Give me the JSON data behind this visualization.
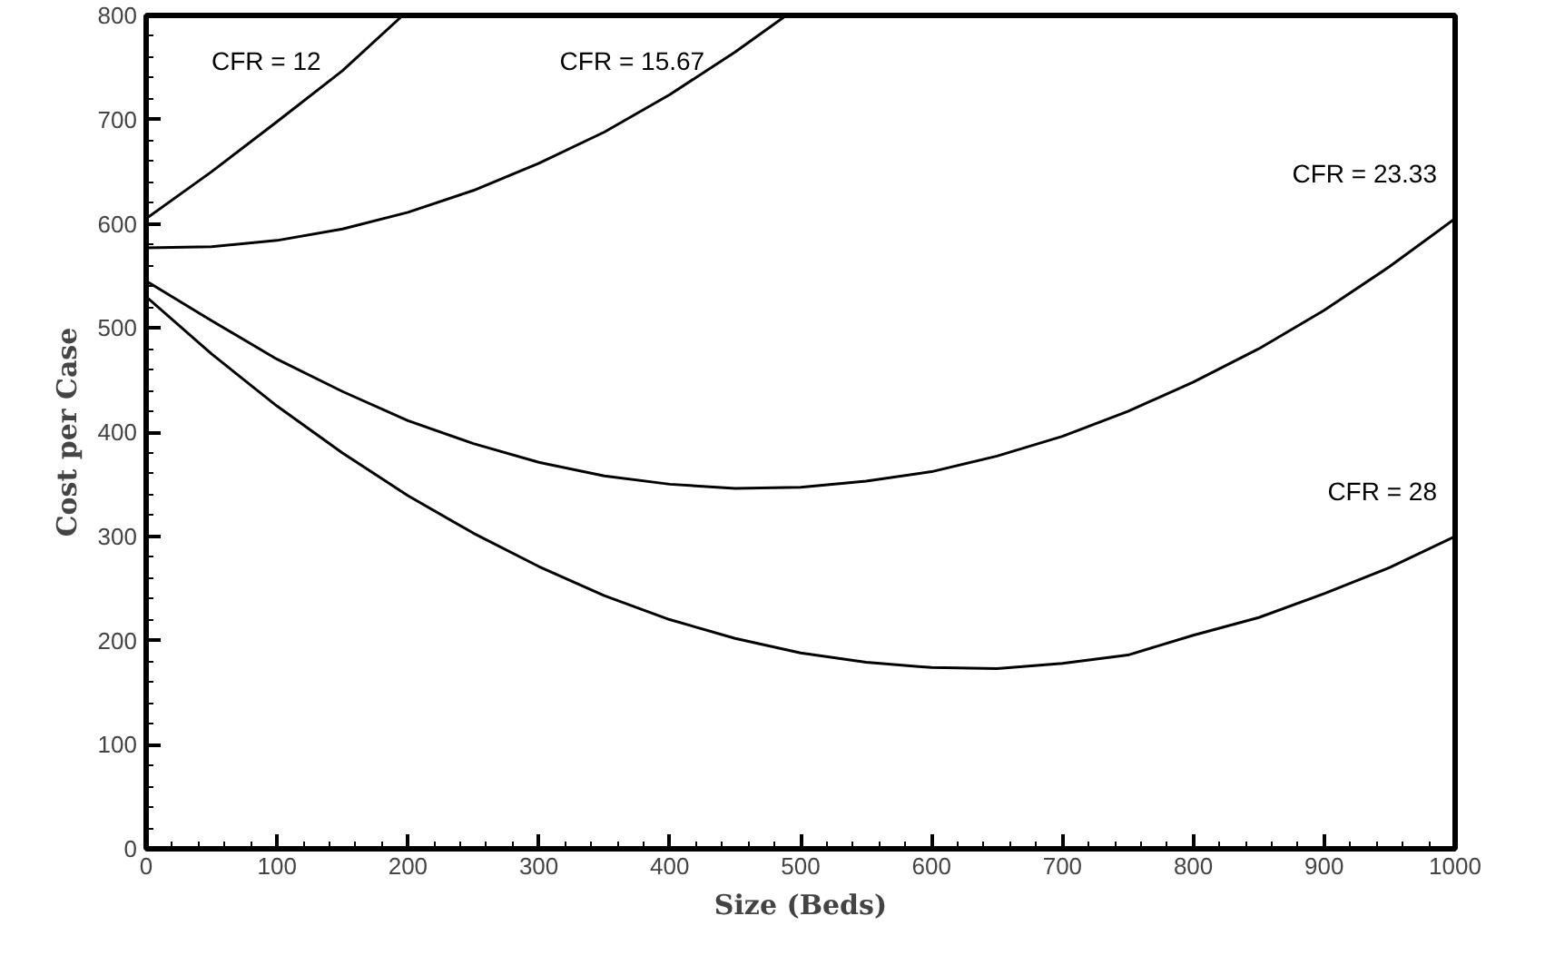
{
  "chart_data": {
    "type": "line",
    "xlabel": "Size (Beds)",
    "ylabel": "Cost per Case",
    "xlim": [
      0,
      1000
    ],
    "ylim": [
      0,
      800
    ],
    "xticks": [
      0,
      100,
      200,
      300,
      400,
      500,
      600,
      700,
      800,
      900,
      1000
    ],
    "yticks": [
      0,
      100,
      200,
      300,
      400,
      500,
      600,
      700,
      800
    ],
    "grid": false,
    "marker": "none",
    "line_style": "solid",
    "series": [
      {
        "name": "CFR = 12",
        "color": "#000000",
        "x": [
          0,
          50,
          100,
          150,
          196
        ],
        "values": [
          605,
          650,
          698,
          747,
          800
        ]
      },
      {
        "name": "CFR = 15.67",
        "color": "#000000",
        "x": [
          0,
          50,
          100,
          150,
          200,
          250,
          300,
          350,
          400,
          450,
          489
        ],
        "values": [
          577,
          578,
          584,
          595,
          611,
          632,
          658,
          688,
          724,
          765,
          800
        ]
      },
      {
        "name": "CFR = 23.33",
        "color": "#000000",
        "x": [
          0,
          50,
          100,
          150,
          200,
          250,
          300,
          350,
          400,
          450,
          500,
          550,
          600,
          650,
          700,
          750,
          800,
          850,
          900,
          950,
          1000
        ],
        "values": [
          545,
          507,
          470,
          439,
          411,
          389,
          371,
          358,
          350,
          346,
          347,
          353,
          362,
          377,
          396,
          420,
          448,
          480,
          517,
          559,
          605
        ]
      },
      {
        "name": "CFR = 28",
        "color": "#000000",
        "x": [
          0,
          50,
          100,
          150,
          200,
          250,
          300,
          350,
          400,
          450,
          500,
          550,
          600,
          650,
          700,
          750,
          800,
          850,
          900,
          950,
          1000
        ],
        "values": [
          530,
          475,
          425,
          380,
          339,
          303,
          271,
          243,
          220,
          202,
          188,
          179,
          174,
          173,
          178,
          186,
          205,
          222,
          245,
          270,
          300
        ]
      }
    ]
  }
}
